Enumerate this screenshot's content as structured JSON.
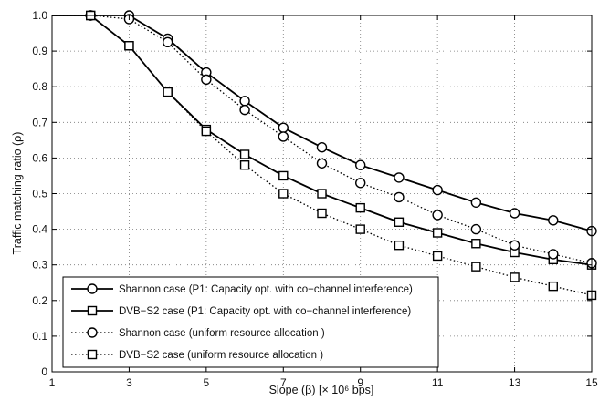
{
  "chart_data": {
    "type": "line",
    "title": "",
    "xlabel": "Slope (β) [× 10⁶ bps]",
    "ylabel": "Traffic matching ratio (ρ)",
    "xlim": [
      1,
      15
    ],
    "ylim": [
      0,
      1
    ],
    "xticks": [
      1,
      3,
      5,
      7,
      9,
      11,
      13,
      15
    ],
    "yticks": [
      0,
      0.1,
      0.2,
      0.3,
      0.4,
      0.5,
      0.6,
      0.7,
      0.8,
      0.9,
      1.0
    ],
    "xtick_labels": [
      "1",
      "3",
      "5",
      "7",
      "9",
      "11",
      "13",
      "15"
    ],
    "ytick_labels": [
      "0",
      "0.1",
      "0.2",
      "0.3",
      "0.4",
      "0.5",
      "0.6",
      "0.7",
      "0.8",
      "0.9",
      "1.0"
    ],
    "grid": true,
    "legend_position": "bottom-left",
    "x": [
      1,
      2,
      3,
      4,
      5,
      6,
      7,
      8,
      9,
      10,
      11,
      12,
      13,
      14,
      15
    ],
    "series": [
      {
        "name": "Shannon case (P1: Capacity opt. with co−channel interference)",
        "line_style": "solid",
        "marker": "circle",
        "values": [
          1.0,
          1.0,
          1.0,
          0.935,
          0.84,
          0.76,
          0.685,
          0.63,
          0.58,
          0.545,
          0.51,
          0.475,
          0.445,
          0.425,
          0.395
        ]
      },
      {
        "name": "DVB−S2 case  (P1: Capacity opt. with co−channel interference)",
        "line_style": "solid",
        "marker": "square",
        "values": [
          1.0,
          1.0,
          0.915,
          0.785,
          0.68,
          0.61,
          0.55,
          0.5,
          0.46,
          0.42,
          0.39,
          0.36,
          0.335,
          0.315,
          0.3
        ]
      },
      {
        "name": "Shannon case (uniform resource allocation      )",
        "line_style": "dotted",
        "marker": "circle",
        "values": [
          1.0,
          1.0,
          0.99,
          0.925,
          0.82,
          0.735,
          0.66,
          0.585,
          0.53,
          0.49,
          0.44,
          0.4,
          0.355,
          0.33,
          0.305
        ]
      },
      {
        "name": "DVB−S2 case (uniform resource allocation      )",
        "line_style": "dotted",
        "marker": "square",
        "values": [
          1.0,
          1.0,
          0.915,
          0.785,
          0.675,
          0.58,
          0.5,
          0.445,
          0.4,
          0.355,
          0.325,
          0.295,
          0.265,
          0.24,
          0.215
        ]
      }
    ]
  }
}
